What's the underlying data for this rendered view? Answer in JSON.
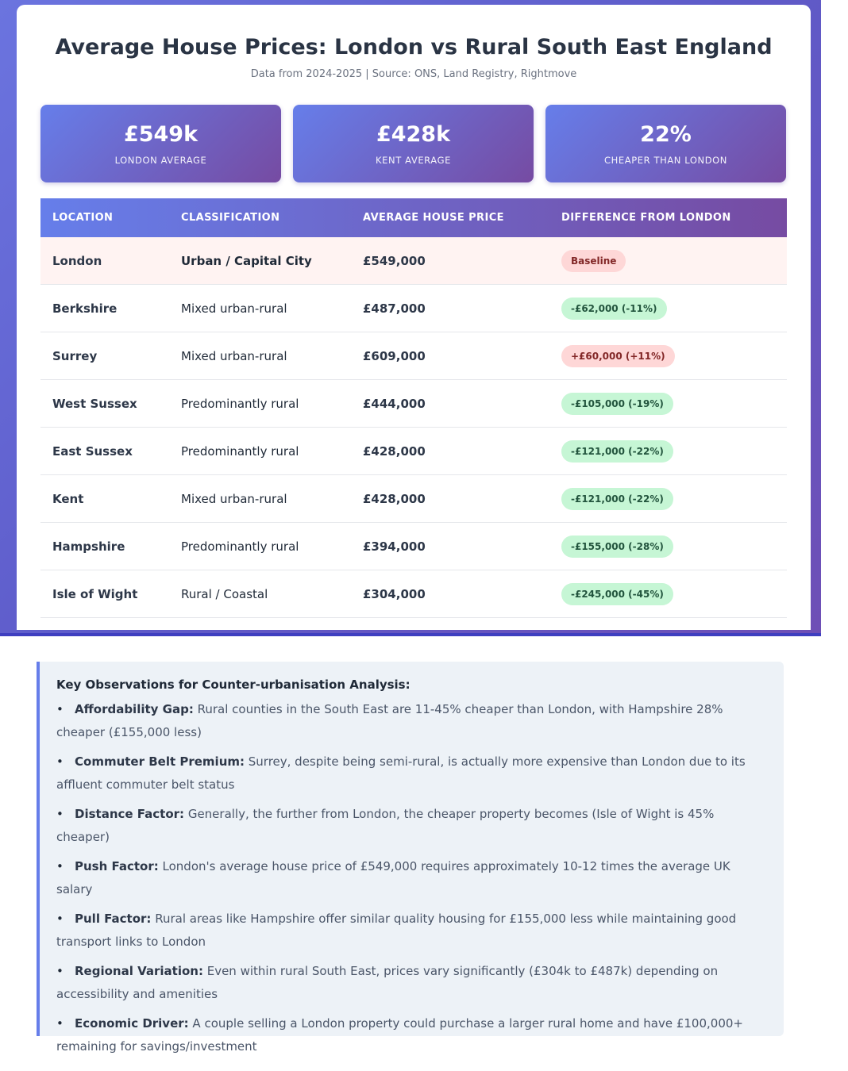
{
  "header": {
    "title": "Average House Prices: London vs Rural South East England",
    "subtitle": "Data from 2024-2025 | Source: ONS, Land Registry, Rightmove"
  },
  "stats": [
    {
      "value": "£549k",
      "label": "LONDON AVERAGE"
    },
    {
      "value": "£428k",
      "label": "KENT AVERAGE"
    },
    {
      "value": "22%",
      "label": "CHEAPER THAN LONDON"
    }
  ],
  "colors": {
    "gradient_start": "#667eea",
    "gradient_end": "#764ba2",
    "badge_green_bg": "#c6f6d5",
    "badge_red_bg": "#fed7d7"
  },
  "table": {
    "headers": [
      "LOCATION",
      "CLASSIFICATION",
      "AVERAGE HOUSE PRICE",
      "DIFFERENCE FROM LONDON"
    ],
    "rows": [
      {
        "location": "London",
        "classification": "Urban / Capital City",
        "price": "£549,000",
        "difference": "Baseline",
        "status": "baseline"
      },
      {
        "location": "Berkshire",
        "classification": "Mixed urban-rural",
        "price": "£487,000",
        "difference": "-£62,000 (-11%)",
        "status": "cheaper"
      },
      {
        "location": "Surrey",
        "classification": "Mixed urban-rural",
        "price": "£609,000",
        "difference": "+£60,000 (+11%)",
        "status": "more-expensive"
      },
      {
        "location": "West Sussex",
        "classification": "Predominantly rural",
        "price": "£444,000",
        "difference": "-£105,000 (-19%)",
        "status": "cheaper"
      },
      {
        "location": "East Sussex",
        "classification": "Predominantly rural",
        "price": "£428,000",
        "difference": "-£121,000 (-22%)",
        "status": "cheaper"
      },
      {
        "location": "Kent",
        "classification": "Mixed urban-rural",
        "price": "£428,000",
        "difference": "-£121,000 (-22%)",
        "status": "cheaper"
      },
      {
        "location": "Hampshire",
        "classification": "Predominantly rural",
        "price": "£394,000",
        "difference": "-£155,000 (-28%)",
        "status": "cheaper"
      },
      {
        "location": "Isle of Wight",
        "classification": "Rural / Coastal",
        "price": "£304,000",
        "difference": "-£245,000 (-45%)",
        "status": "cheaper"
      }
    ]
  },
  "observations": {
    "title": "Key Observations for Counter-urbanisation Analysis:",
    "bullet": "•",
    "items": [
      {
        "label": "Affordability Gap:",
        "text": " Rural counties in the South East are 11-45% cheaper than London, with Hampshire 28% cheaper (£155,000 less)"
      },
      {
        "label": "Commuter Belt Premium:",
        "text": " Surrey, despite being semi-rural, is actually more expensive than London due to its affluent commuter belt status"
      },
      {
        "label": "Distance Factor:",
        "text": " Generally, the further from London, the cheaper property becomes (Isle of Wight is 45% cheaper)"
      },
      {
        "label": "Push Factor:",
        "text": " London's average house price of £549,000 requires approximately 10-12 times the average UK salary"
      },
      {
        "label": "Pull Factor:",
        "text": " Rural areas like Hampshire offer similar quality housing for £155,000 less while maintaining good transport links to London"
      },
      {
        "label": "Regional Variation:",
        "text": " Even within rural South East, prices vary significantly (£304k to £487k) depending on accessibility and amenities"
      },
      {
        "label": "Economic Driver:",
        "text": " A couple selling a London property could purchase a larger rural home and have £100,000+ remaining for savings/investment"
      }
    ]
  }
}
